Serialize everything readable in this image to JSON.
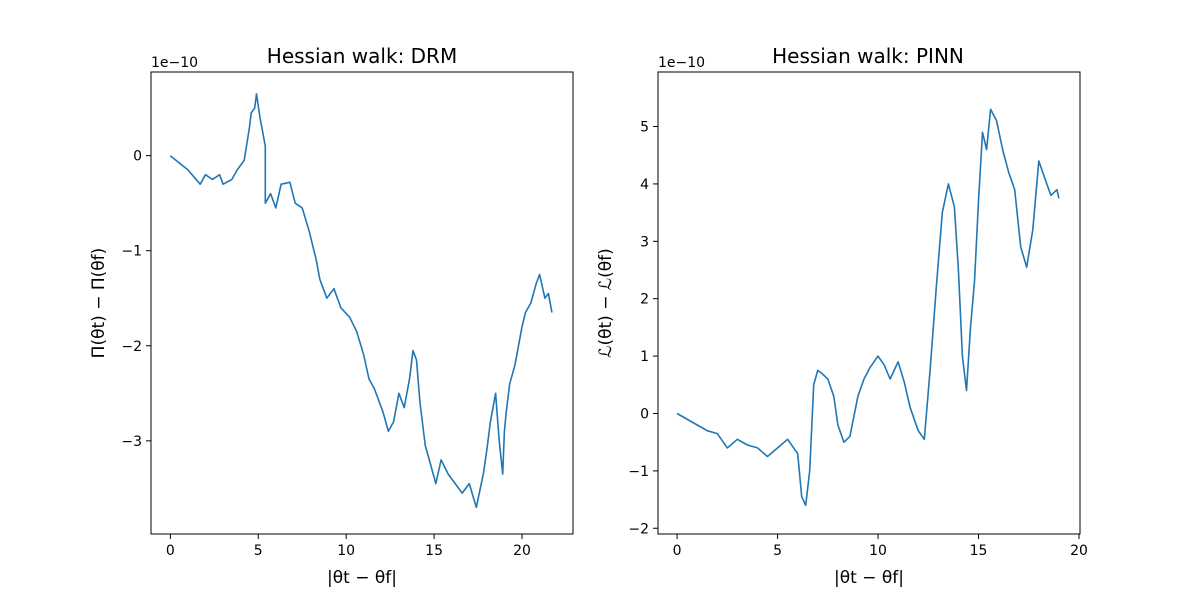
{
  "chart_data": [
    {
      "type": "line",
      "title": "Hessian walk: DRM",
      "xlabel": "|θt − θf|",
      "ylabel": "Π(θt) − Π(θf)",
      "offset_text": "1e−10",
      "xlim": [
        -1.1,
        22.9
      ],
      "ylim": [
        -3.98,
        0.88
      ],
      "xticks": [
        0,
        5,
        10,
        15,
        20
      ],
      "xtick_labels": [
        "0",
        "5",
        "10",
        "15",
        "20"
      ],
      "yticks": [
        0,
        -1,
        -2,
        -3
      ],
      "ytick_labels": [
        "0",
        "−1",
        "−2",
        "−3"
      ],
      "color": "#1f77b4",
      "series": [
        {
          "name": "DRM",
          "x": [
            0,
            1,
            1.7,
            2,
            2.4,
            2.8,
            3,
            3.5,
            3.8,
            4.2,
            4.5,
            4.6,
            4.8,
            4.9,
            5.1,
            5.4,
            5.4,
            5.7,
            6,
            6.3,
            6.8,
            7.1,
            7.5,
            7.9,
            8.3,
            8.5,
            8.9,
            9.3,
            9.7,
            10.2,
            10.6,
            11,
            11.3,
            11.6,
            11.9,
            12.1,
            12.4,
            12.7,
            13,
            13.3,
            13.6,
            13.8,
            14,
            14.2,
            14.4,
            14.5,
            14.8,
            15.1,
            15.4,
            15.8,
            16.2,
            16.6,
            17,
            17.4,
            17.8,
            18,
            18.2,
            18.5,
            18.7,
            18.9,
            19,
            19.1,
            19.3,
            19.6,
            19.8,
            20,
            20.2,
            20.5,
            20.8,
            21,
            21.3,
            21.5,
            21.7
          ],
          "values": [
            0,
            -0.15,
            -0.3,
            -0.2,
            -0.25,
            -0.2,
            -0.3,
            -0.25,
            -0.15,
            -0.05,
            0.3,
            0.45,
            0.5,
            0.65,
            0.4,
            0.1,
            -0.5,
            -0.4,
            -0.55,
            -0.3,
            -0.28,
            -0.5,
            -0.55,
            -0.8,
            -1.1,
            -1.3,
            -1.5,
            -1.4,
            -1.6,
            -1.7,
            -1.85,
            -2.1,
            -2.35,
            -2.45,
            -2.6,
            -2.7,
            -2.9,
            -2.8,
            -2.5,
            -2.65,
            -2.35,
            -2.05,
            -2.15,
            -2.6,
            -2.9,
            -3.05,
            -3.25,
            -3.45,
            -3.2,
            -3.35,
            -3.45,
            -3.55,
            -3.45,
            -3.7,
            -3.35,
            -3.1,
            -2.8,
            -2.5,
            -3.0,
            -3.35,
            -2.9,
            -2.7,
            -2.4,
            -2.2,
            -2.0,
            -1.8,
            -1.65,
            -1.55,
            -1.35,
            -1.25,
            -1.5,
            -1.45,
            -1.65
          ]
        }
      ]
    },
    {
      "type": "line",
      "title": "Hessian walk: PINN",
      "xlabel": "|θt − θf|",
      "ylabel": "ℒ(θt) − ℒ(θf)",
      "offset_text": "1e−10",
      "xlim": [
        -0.95,
        20.05
      ],
      "ylim": [
        -2.1,
        5.95
      ],
      "xticks": [
        0,
        5,
        10,
        15,
        20
      ],
      "xtick_labels": [
        "0",
        "5",
        "10",
        "15",
        "20"
      ],
      "yticks": [
        5,
        4,
        3,
        2,
        1,
        0,
        -1,
        -2
      ],
      "ytick_labels": [
        "5",
        "4",
        "3",
        "2",
        "1",
        "0",
        "−1",
        "−2"
      ],
      "color": "#1f77b4",
      "series": [
        {
          "name": "PINN",
          "x": [
            0,
            1,
            1.5,
            2,
            2.5,
            3,
            3.5,
            4,
            4.5,
            5,
            5.5,
            6,
            6.2,
            6.4,
            6.6,
            6.8,
            7,
            7.2,
            7.5,
            7.8,
            8,
            8.3,
            8.6,
            9,
            9.3,
            9.6,
            10,
            10.3,
            10.6,
            11,
            11.3,
            11.6,
            12,
            12.3,
            12.6,
            12.9,
            13.2,
            13.5,
            13.8,
            14,
            14.2,
            14.4,
            14.6,
            14.8,
            15,
            15.2,
            15.4,
            15.6,
            15.9,
            16.2,
            16.5,
            16.8,
            17.1,
            17.4,
            17.7,
            18,
            18.3,
            18.6,
            18.9,
            19
          ],
          "values": [
            0,
            -0.2,
            -0.3,
            -0.35,
            -0.6,
            -0.45,
            -0.55,
            -0.6,
            -0.75,
            -0.6,
            -0.45,
            -0.7,
            -1.45,
            -1.6,
            -1.0,
            0.5,
            0.75,
            0.7,
            0.6,
            0.3,
            -0.2,
            -0.5,
            -0.4,
            0.3,
            0.6,
            0.8,
            1.0,
            0.85,
            0.6,
            0.9,
            0.55,
            0.1,
            -0.3,
            -0.45,
            0.8,
            2.2,
            3.5,
            4.0,
            3.6,
            2.5,
            1.0,
            0.4,
            1.5,
            2.3,
            3.7,
            4.9,
            4.6,
            5.3,
            5.1,
            4.6,
            4.2,
            3.9,
            2.9,
            2.55,
            3.2,
            4.4,
            4.1,
            3.8,
            3.9,
            3.75
          ]
        }
      ]
    }
  ]
}
